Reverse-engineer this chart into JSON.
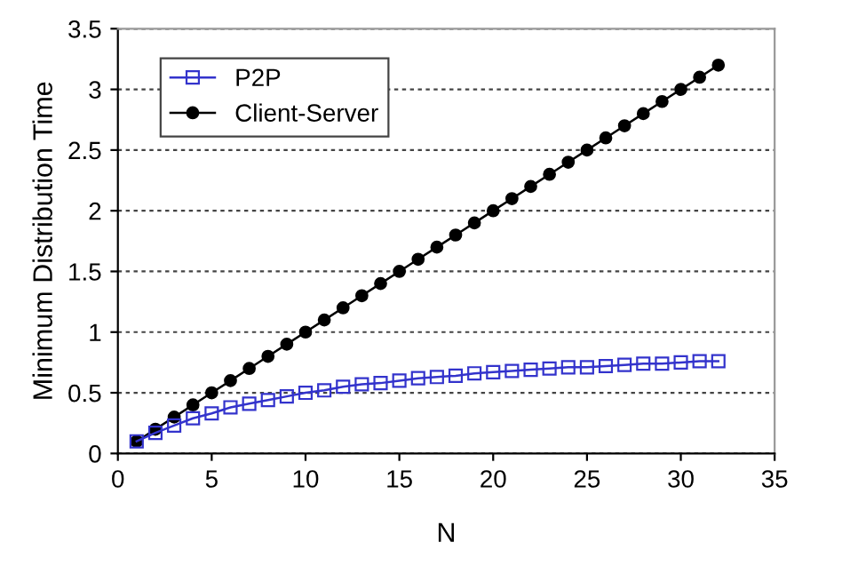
{
  "chart_data": {
    "type": "line",
    "xlabel": "N",
    "ylabel": "Minimum Distribution Time",
    "x": [
      1,
      2,
      3,
      4,
      5,
      6,
      7,
      8,
      9,
      10,
      11,
      12,
      13,
      14,
      15,
      16,
      17,
      18,
      19,
      20,
      21,
      22,
      23,
      24,
      25,
      26,
      27,
      28,
      29,
      30,
      31,
      32
    ],
    "series": [
      {
        "name": "P2P",
        "color": "#3333cc",
        "marker": "square",
        "values": [
          0.1,
          0.17,
          0.23,
          0.29,
          0.33,
          0.38,
          0.41,
          0.44,
          0.47,
          0.5,
          0.52,
          0.55,
          0.57,
          0.58,
          0.6,
          0.62,
          0.63,
          0.64,
          0.66,
          0.67,
          0.68,
          0.69,
          0.7,
          0.71,
          0.71,
          0.72,
          0.73,
          0.74,
          0.74,
          0.75,
          0.76,
          0.76
        ]
      },
      {
        "name": "Client-Server",
        "color": "#000000",
        "marker": "circle",
        "values": [
          0.1,
          0.2,
          0.3,
          0.4,
          0.5,
          0.6,
          0.7,
          0.8,
          0.9,
          1.0,
          1.1,
          1.2,
          1.3,
          1.4,
          1.5,
          1.6,
          1.7,
          1.8,
          1.9,
          2.0,
          2.1,
          2.2,
          2.3,
          2.4,
          2.5,
          2.6,
          2.7,
          2.8,
          2.9,
          3.0,
          3.1,
          3.2
        ]
      }
    ],
    "xlim": [
      0,
      35
    ],
    "xticks": [
      0,
      5,
      10,
      15,
      20,
      25,
      30,
      35
    ],
    "ylim": [
      0,
      3.5
    ],
    "yticks": [
      0,
      0.5,
      1,
      1.5,
      2,
      2.5,
      3,
      3.5
    ],
    "grid": "y",
    "legend": "top left",
    "line_style": "solid"
  }
}
